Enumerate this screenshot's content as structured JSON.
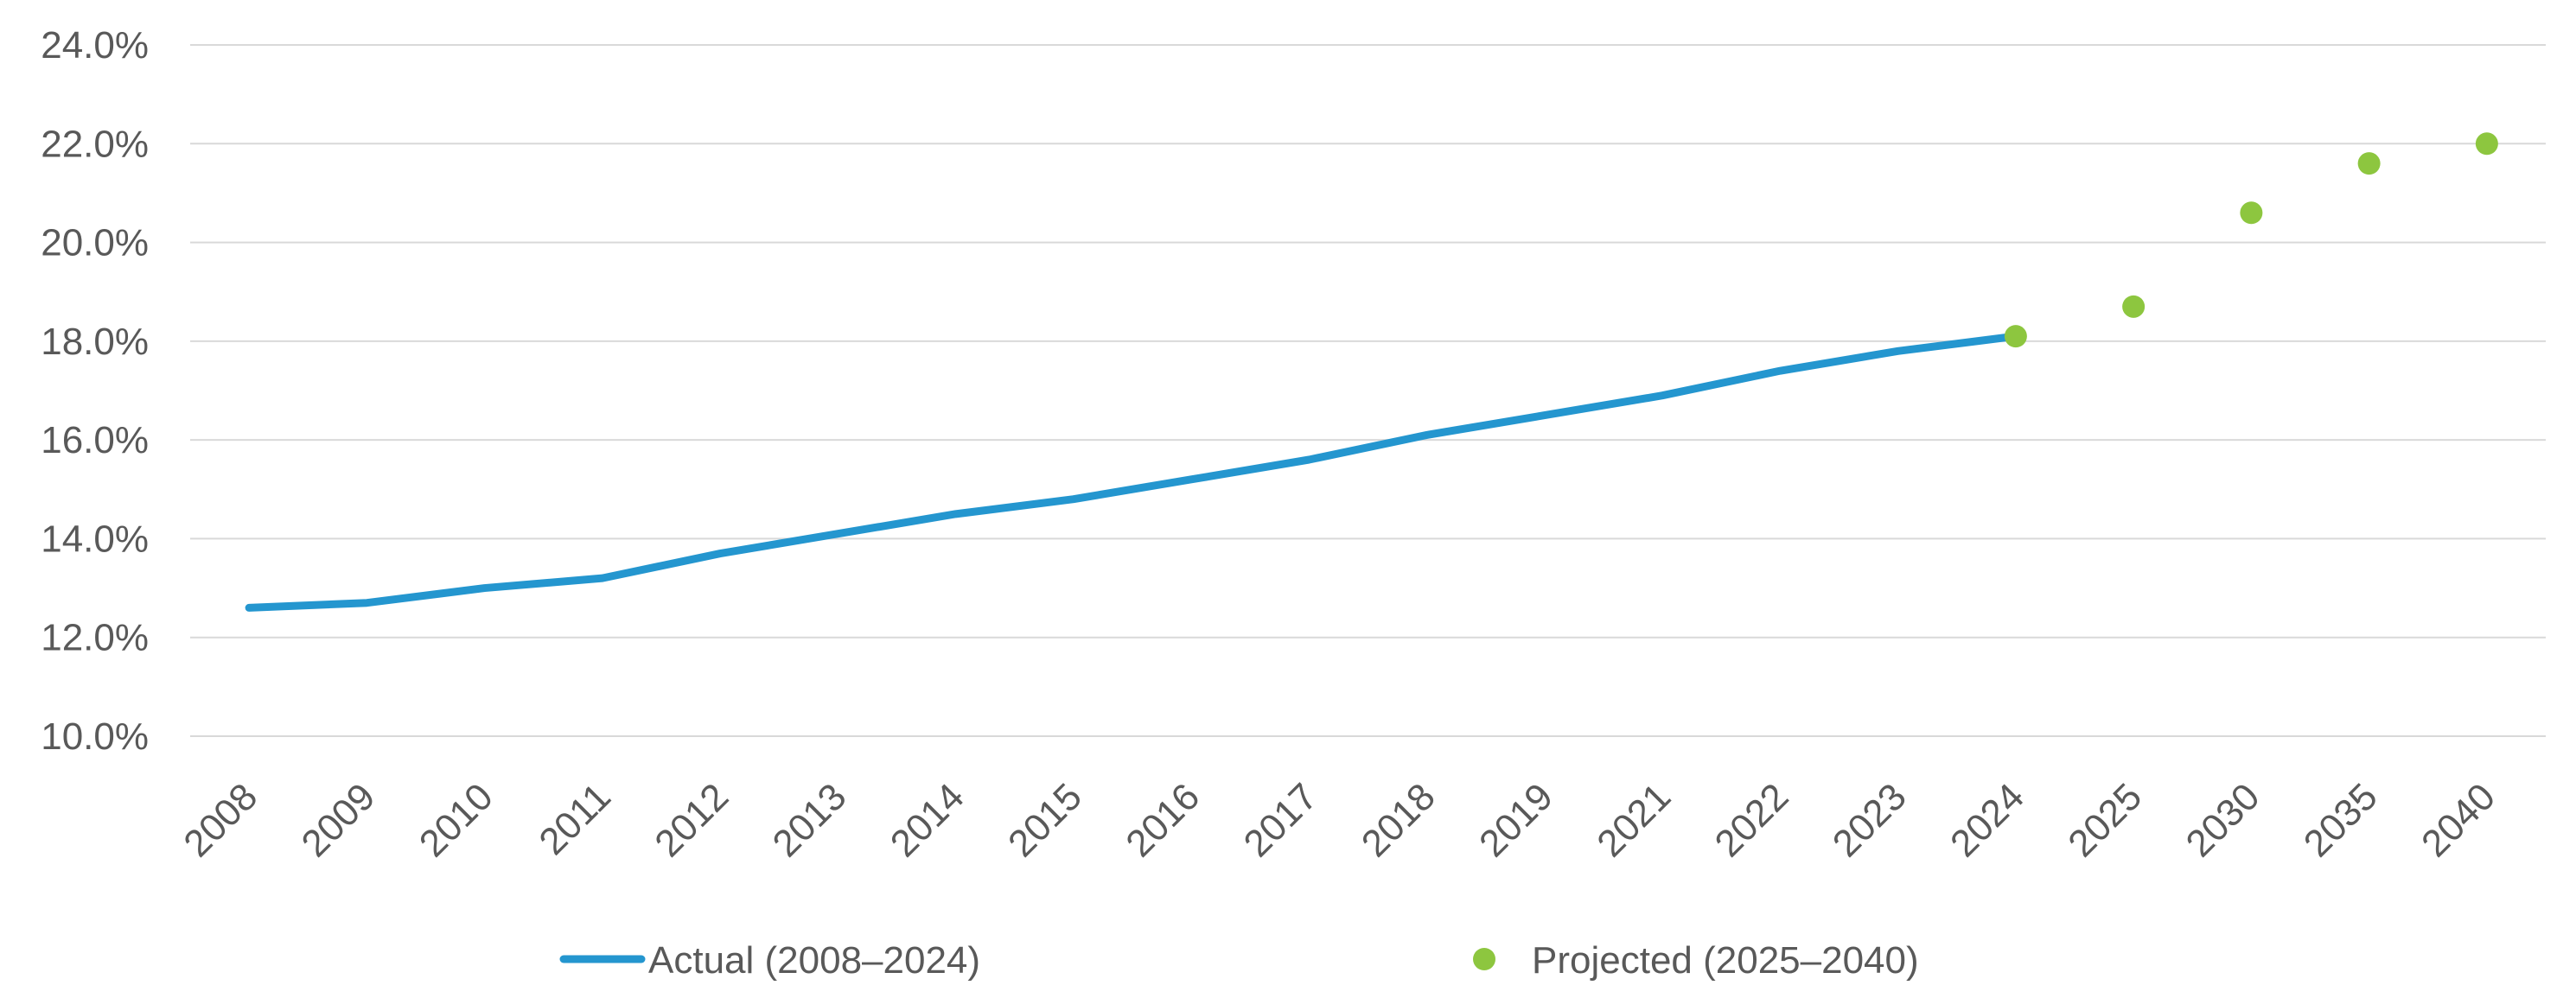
{
  "chart_data": {
    "type": "line",
    "categories": [
      "2008",
      "2009",
      "2010",
      "2011",
      "2012",
      "2013",
      "2014",
      "2015",
      "2016",
      "2017",
      "2018",
      "2019",
      "2021",
      "2022",
      "2023",
      "2024",
      "2025",
      "2030",
      "2035",
      "2040"
    ],
    "series": [
      {
        "name": "Actual (2008–2024)",
        "style": "line",
        "color": "#2496cf",
        "values": [
          12.6,
          12.7,
          13.0,
          13.2,
          13.7,
          14.1,
          14.5,
          14.8,
          15.2,
          15.6,
          16.1,
          16.5,
          16.9,
          17.4,
          17.8,
          18.1,
          null,
          null,
          null,
          null
        ]
      },
      {
        "name": "Projected (2025–2040)",
        "style": "markers",
        "color": "#8dc63f",
        "values": [
          null,
          null,
          null,
          null,
          null,
          null,
          null,
          null,
          null,
          null,
          null,
          null,
          null,
          null,
          null,
          18.1,
          18.7,
          20.6,
          21.6,
          22.0
        ]
      }
    ],
    "y_ticks": [
      "10.0%",
      "12.0%",
      "14.0%",
      "16.0%",
      "18.0%",
      "20.0%",
      "22.0%",
      "24.0%"
    ],
    "ylim": [
      10,
      24
    ],
    "y_format": "percent",
    "grid": true,
    "legend_position": "bottom"
  }
}
